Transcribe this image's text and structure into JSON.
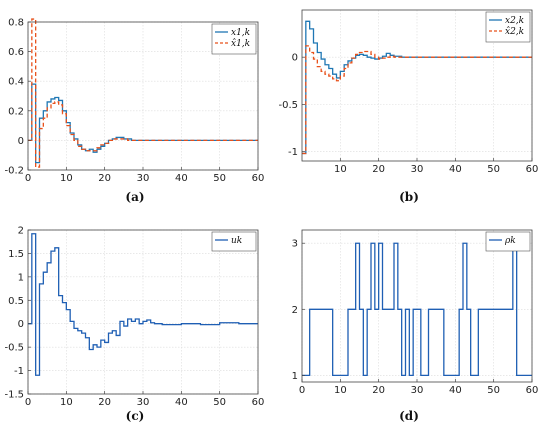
{
  "chart_data": [
    {
      "panel": "a",
      "caption": "(a)",
      "type": "line",
      "xlim": [
        0,
        60
      ],
      "ylim": [
        -0.2,
        0.8
      ],
      "xticks": [
        0,
        10,
        20,
        30,
        40,
        50,
        60
      ],
      "yticks": [
        -0.2,
        0,
        0.2,
        0.4,
        0.6,
        0.8
      ],
      "grid": true,
      "legend_position": "top-right",
      "series": [
        {
          "name": "x1,k",
          "color": "#1f77b4",
          "style": "step-solid",
          "x": [
            0,
            1,
            2,
            3,
            4,
            5,
            6,
            7,
            8,
            9,
            10,
            11,
            12,
            13,
            14,
            15,
            16,
            17,
            18,
            19,
            20,
            21,
            22,
            23,
            24,
            25,
            26,
            27,
            28,
            29,
            30,
            35,
            40,
            45,
            50,
            55,
            60
          ],
          "values": [
            0.0,
            0.38,
            -0.15,
            0.15,
            0.2,
            0.26,
            0.28,
            0.29,
            0.27,
            0.2,
            0.12,
            0.05,
            0.01,
            -0.03,
            -0.06,
            -0.07,
            -0.06,
            -0.08,
            -0.06,
            -0.04,
            -0.02,
            0.0,
            0.01,
            0.02,
            0.02,
            0.01,
            0.01,
            0.0,
            0.0,
            0.0,
            0.0,
            0.0,
            0.0,
            0.0,
            0.0,
            0.0,
            0.0
          ]
        },
        {
          "name": "x̂1,k",
          "color": "#e8501a",
          "style": "step-dashed",
          "x": [
            0,
            1,
            2,
            3,
            4,
            5,
            6,
            7,
            8,
            9,
            10,
            11,
            12,
            13,
            14,
            15,
            16,
            17,
            18,
            19,
            20,
            21,
            22,
            23,
            24,
            25,
            26,
            27,
            28,
            29,
            30,
            35,
            40,
            45,
            50,
            55,
            60
          ],
          "values": [
            0.0,
            0.82,
            -0.18,
            0.08,
            0.15,
            0.22,
            0.25,
            0.26,
            0.24,
            0.18,
            0.1,
            0.04,
            0.0,
            -0.04,
            -0.06,
            -0.07,
            -0.07,
            -0.07,
            -0.05,
            -0.03,
            -0.02,
            0.0,
            0.01,
            0.01,
            0.01,
            0.01,
            0.0,
            0.0,
            0.0,
            0.0,
            0.0,
            0.0,
            0.0,
            0.0,
            0.0,
            0.0,
            0.0
          ]
        }
      ]
    },
    {
      "panel": "b",
      "caption": "(b)",
      "type": "line",
      "xlim": [
        0,
        60
      ],
      "ylim": [
        -1.1,
        0.5
      ],
      "xticks": [
        10,
        20,
        30,
        40,
        50,
        60
      ],
      "yticks": [
        -1,
        -0.5,
        0
      ],
      "grid": true,
      "legend_position": "top-right",
      "series": [
        {
          "name": "x2,k",
          "color": "#1f77b4",
          "style": "step-solid",
          "x": [
            0,
            1,
            2,
            3,
            4,
            5,
            6,
            7,
            8,
            9,
            10,
            11,
            12,
            13,
            14,
            15,
            16,
            17,
            18,
            19,
            20,
            21,
            22,
            23,
            24,
            25,
            26,
            27,
            28,
            29,
            30,
            35,
            40,
            45,
            50,
            55,
            60
          ],
          "values": [
            -1.02,
            0.38,
            0.3,
            0.15,
            0.05,
            -0.02,
            -0.08,
            -0.12,
            -0.18,
            -0.22,
            -0.15,
            -0.08,
            -0.04,
            -0.01,
            0.02,
            0.03,
            0.02,
            0.0,
            -0.01,
            -0.02,
            -0.01,
            0.01,
            0.04,
            0.02,
            0.01,
            0.01,
            0.0,
            0.0,
            0.0,
            0.0,
            0.0,
            0.0,
            0.0,
            0.0,
            0.0,
            0.0,
            0.0
          ]
        },
        {
          "name": "x̂2,k",
          "color": "#e8501a",
          "style": "step-dashed",
          "x": [
            0,
            1,
            2,
            3,
            4,
            5,
            6,
            7,
            8,
            9,
            10,
            11,
            12,
            13,
            14,
            15,
            16,
            17,
            18,
            19,
            20,
            21,
            22,
            23,
            24,
            25,
            26,
            27,
            28,
            29,
            30,
            35,
            40,
            45,
            50,
            55,
            60
          ],
          "values": [
            -1.02,
            0.12,
            0.05,
            -0.02,
            -0.1,
            -0.15,
            -0.18,
            -0.2,
            -0.23,
            -0.25,
            -0.2,
            -0.12,
            -0.06,
            -0.01,
            0.03,
            0.05,
            0.06,
            0.06,
            0.03,
            0.0,
            -0.02,
            -0.01,
            0.0,
            0.01,
            0.0,
            0.0,
            0.0,
            0.0,
            0.0,
            0.0,
            0.0,
            0.0,
            0.0,
            0.0,
            0.0,
            0.0,
            0.0
          ]
        }
      ]
    },
    {
      "panel": "c",
      "caption": "(c)",
      "type": "line",
      "xlim": [
        0,
        60
      ],
      "ylim": [
        -1.5,
        2
      ],
      "xticks": [
        0,
        10,
        20,
        30,
        40,
        50,
        60
      ],
      "yticks": [
        -1.5,
        -1,
        -0.5,
        0,
        0.5,
        1,
        1.5,
        2
      ],
      "grid": true,
      "legend_position": "top-right",
      "series": [
        {
          "name": "uk",
          "color": "#1f5fb4",
          "style": "step-solid",
          "x": [
            0,
            1,
            2,
            3,
            4,
            5,
            6,
            7,
            8,
            9,
            10,
            11,
            12,
            13,
            14,
            15,
            16,
            17,
            18,
            19,
            20,
            21,
            22,
            23,
            24,
            25,
            26,
            27,
            28,
            29,
            30,
            31,
            32,
            33,
            34,
            35,
            40,
            45,
            50,
            55,
            60
          ],
          "values": [
            0.0,
            1.92,
            -1.1,
            0.85,
            1.1,
            1.3,
            1.55,
            1.62,
            0.6,
            0.45,
            0.3,
            0.05,
            -0.1,
            -0.15,
            -0.2,
            -0.3,
            -0.55,
            -0.45,
            -0.5,
            -0.35,
            -0.4,
            -0.2,
            -0.15,
            -0.25,
            0.05,
            -0.05,
            0.1,
            0.05,
            0.1,
            0.0,
            0.05,
            0.08,
            0.02,
            0.0,
            0.0,
            -0.02,
            0.0,
            -0.02,
            0.02,
            0.0,
            0.0
          ]
        }
      ]
    },
    {
      "panel": "d",
      "caption": "(d)",
      "type": "line",
      "xlim": [
        0,
        60
      ],
      "ylim": [
        0.9,
        3.2
      ],
      "xticks": [
        0,
        10,
        20,
        30,
        40,
        50,
        60
      ],
      "yticks": [
        1,
        2,
        3
      ],
      "grid": true,
      "legend_position": "top-right",
      "series": [
        {
          "name": "ρk",
          "color": "#1f5fb4",
          "style": "step-solid",
          "x": [
            0,
            2,
            8,
            12,
            14,
            15,
            16,
            17,
            18,
            19,
            20,
            21,
            22,
            23,
            24,
            25,
            26,
            27,
            28,
            29,
            31,
            33,
            35,
            37,
            39,
            40,
            41,
            42,
            43,
            44,
            46,
            48,
            50,
            52,
            54,
            55,
            56,
            60
          ],
          "values": [
            1,
            2,
            1,
            2,
            3,
            2,
            1,
            2,
            3,
            2,
            3,
            2,
            2,
            2,
            3,
            2,
            1,
            2,
            1,
            2,
            1,
            2,
            2,
            1,
            1,
            1,
            2,
            3,
            2,
            1,
            2,
            2,
            2,
            2,
            2,
            3,
            1,
            1
          ]
        }
      ]
    }
  ]
}
